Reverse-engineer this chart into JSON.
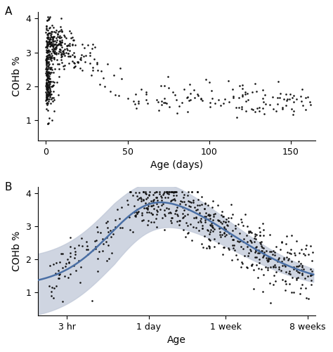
{
  "panel_A": {
    "label": "A",
    "xlabel": "Age (days)",
    "ylabel": "COHb %",
    "xlim": [
      -5,
      165
    ],
    "ylim": [
      0.4,
      4.2
    ],
    "yticks": [
      1,
      2,
      3,
      4
    ],
    "xticks": [
      0,
      50,
      100,
      150
    ]
  },
  "panel_B": {
    "label": "B",
    "xlabel": "Age",
    "ylabel": "COHb %",
    "ylim": [
      0.3,
      4.2
    ],
    "yticks": [
      1,
      2,
      3,
      4
    ],
    "xtick_labels": [
      "3 hr",
      "1 day",
      "1 week",
      "8 weeks"
    ],
    "tick_days": [
      0.125,
      1.0,
      7.0,
      56.0
    ],
    "curve_color": "#4a6fa5",
    "ci_color": "#c0c8d8"
  },
  "dot_color": "#111111",
  "dot_size": 3.5,
  "background_color": "#ffffff",
  "font_size": 10,
  "label_font_size": 11
}
